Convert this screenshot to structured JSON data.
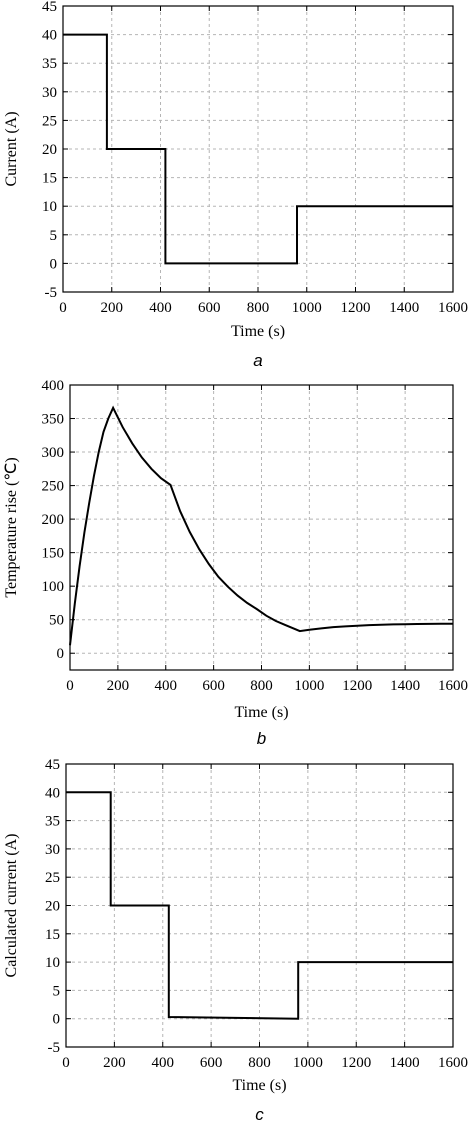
{
  "chart_data": [
    {
      "type": "line",
      "caption": "a",
      "xlabel": "Time (s)",
      "ylabel": "Current (A)",
      "xlim": [
        0,
        1600
      ],
      "ylim": [
        -5,
        45
      ],
      "xticks": [
        0,
        200,
        400,
        600,
        800,
        1000,
        1200,
        1400,
        1600
      ],
      "yticks": [
        -5,
        0,
        5,
        10,
        15,
        20,
        25,
        30,
        35,
        40,
        45
      ],
      "grid": true,
      "series": [
        {
          "x": [
            0,
            180,
            180,
            420,
            420,
            960,
            960,
            1600
          ],
          "y": [
            40,
            40,
            20,
            20,
            0,
            0,
            10,
            10
          ]
        }
      ]
    },
    {
      "type": "line",
      "caption": "b",
      "xlabel": "Time (s)",
      "ylabel": "Temperature rise (℃)",
      "xlim": [
        0,
        1600
      ],
      "ylim": [
        -25,
        400
      ],
      "xticks": [
        0,
        200,
        400,
        600,
        800,
        1000,
        1200,
        1400,
        1600
      ],
      "yticks": [
        0,
        50,
        100,
        150,
        200,
        250,
        300,
        350,
        400
      ],
      "grid": true,
      "series": [
        {
          "x": [
            0,
            20,
            40,
            60,
            80,
            100,
            120,
            140,
            160,
            180,
            220,
            260,
            300,
            340,
            380,
            420,
            460,
            500,
            540,
            580,
            620,
            660,
            700,
            740,
            780,
            820,
            860,
            900,
            940,
            960,
            1000,
            1050,
            1100,
            1150,
            1200,
            1250,
            1300,
            1350,
            1400,
            1450,
            1500,
            1550,
            1600
          ],
          "y": [
            12,
            74,
            130,
            180,
            224,
            264,
            300,
            330,
            350,
            366,
            337,
            313,
            292,
            275,
            261,
            251,
            212,
            181,
            155,
            133,
            114,
            99,
            86,
            75,
            66,
            56,
            48,
            42,
            36,
            33,
            35,
            37,
            39,
            40,
            41,
            42,
            42.5,
            43,
            43.3,
            43.6,
            43.8,
            44,
            44
          ]
        }
      ]
    },
    {
      "type": "line",
      "caption": "c",
      "xlabel": "Time (s)",
      "ylabel": "Calculated current (A)",
      "xlim": [
        0,
        1600
      ],
      "ylim": [
        -5,
        45
      ],
      "xticks": [
        0,
        200,
        400,
        600,
        800,
        1000,
        1200,
        1400,
        1600
      ],
      "yticks": [
        -5,
        0,
        5,
        10,
        15,
        20,
        25,
        30,
        35,
        40,
        45
      ],
      "grid": true,
      "series": [
        {
          "x": [
            0,
            185,
            185,
            425,
            425,
            960,
            960,
            1600
          ],
          "y": [
            40,
            40,
            20,
            20,
            0.3,
            0,
            10,
            10
          ]
        }
      ]
    }
  ]
}
